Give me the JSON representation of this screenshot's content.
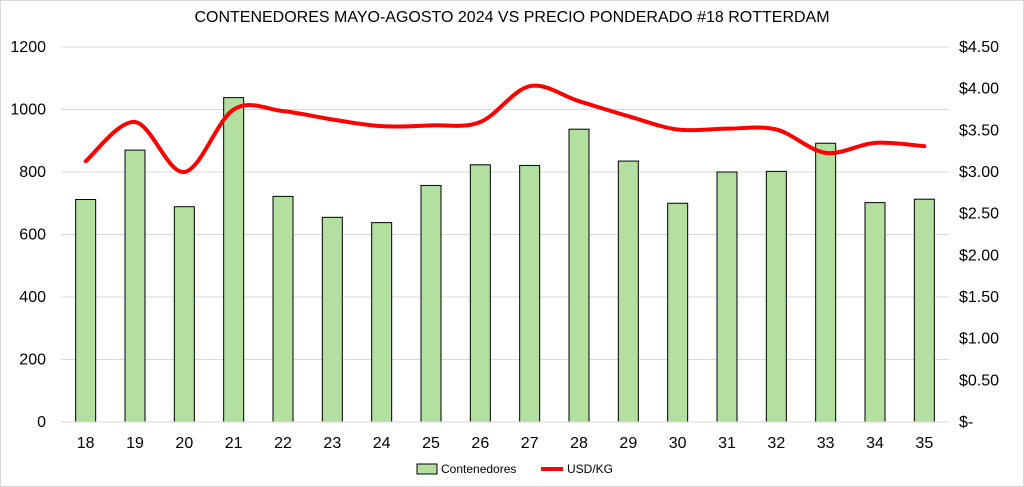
{
  "chart_data": {
    "type": "bar",
    "title": "CONTENEDORES MAYO-AGOSTO 2024 VS PRECIO PONDERADO #18 ROTTERDAM",
    "categories": [
      "18",
      "19",
      "20",
      "21",
      "22",
      "23",
      "24",
      "25",
      "26",
      "27",
      "28",
      "29",
      "30",
      "31",
      "32",
      "33",
      "34",
      "35"
    ],
    "series": [
      {
        "name": "Contenedores",
        "type": "bar",
        "axis": "left",
        "color": "#b3e0a0",
        "values": [
          712,
          870,
          689,
          1038,
          722,
          655,
          638,
          757,
          823,
          821,
          937,
          835,
          700,
          800,
          802,
          892,
          702,
          713
        ]
      },
      {
        "name": "USD/KG",
        "type": "line",
        "axis": "right",
        "color": "#ff0000",
        "values": [
          3.13,
          3.6,
          3.0,
          3.75,
          3.73,
          3.63,
          3.55,
          3.56,
          3.6,
          4.03,
          3.85,
          3.67,
          3.51,
          3.52,
          3.51,
          3.23,
          3.35,
          3.31
        ]
      }
    ],
    "y_left": {
      "ylim": [
        0,
        1200
      ],
      "ticks": [
        "0",
        "200",
        "400",
        "600",
        "800",
        "1000",
        "1200"
      ]
    },
    "y_right": {
      "ylim": [
        0,
        4.5
      ],
      "ticks": [
        "$-",
        "$0.50",
        "$1.00",
        "$1.50",
        "$2.00",
        "$2.50",
        "$3.00",
        "$3.50",
        "$4.00",
        "$4.50"
      ]
    },
    "grid": true,
    "legend": "bottom"
  }
}
